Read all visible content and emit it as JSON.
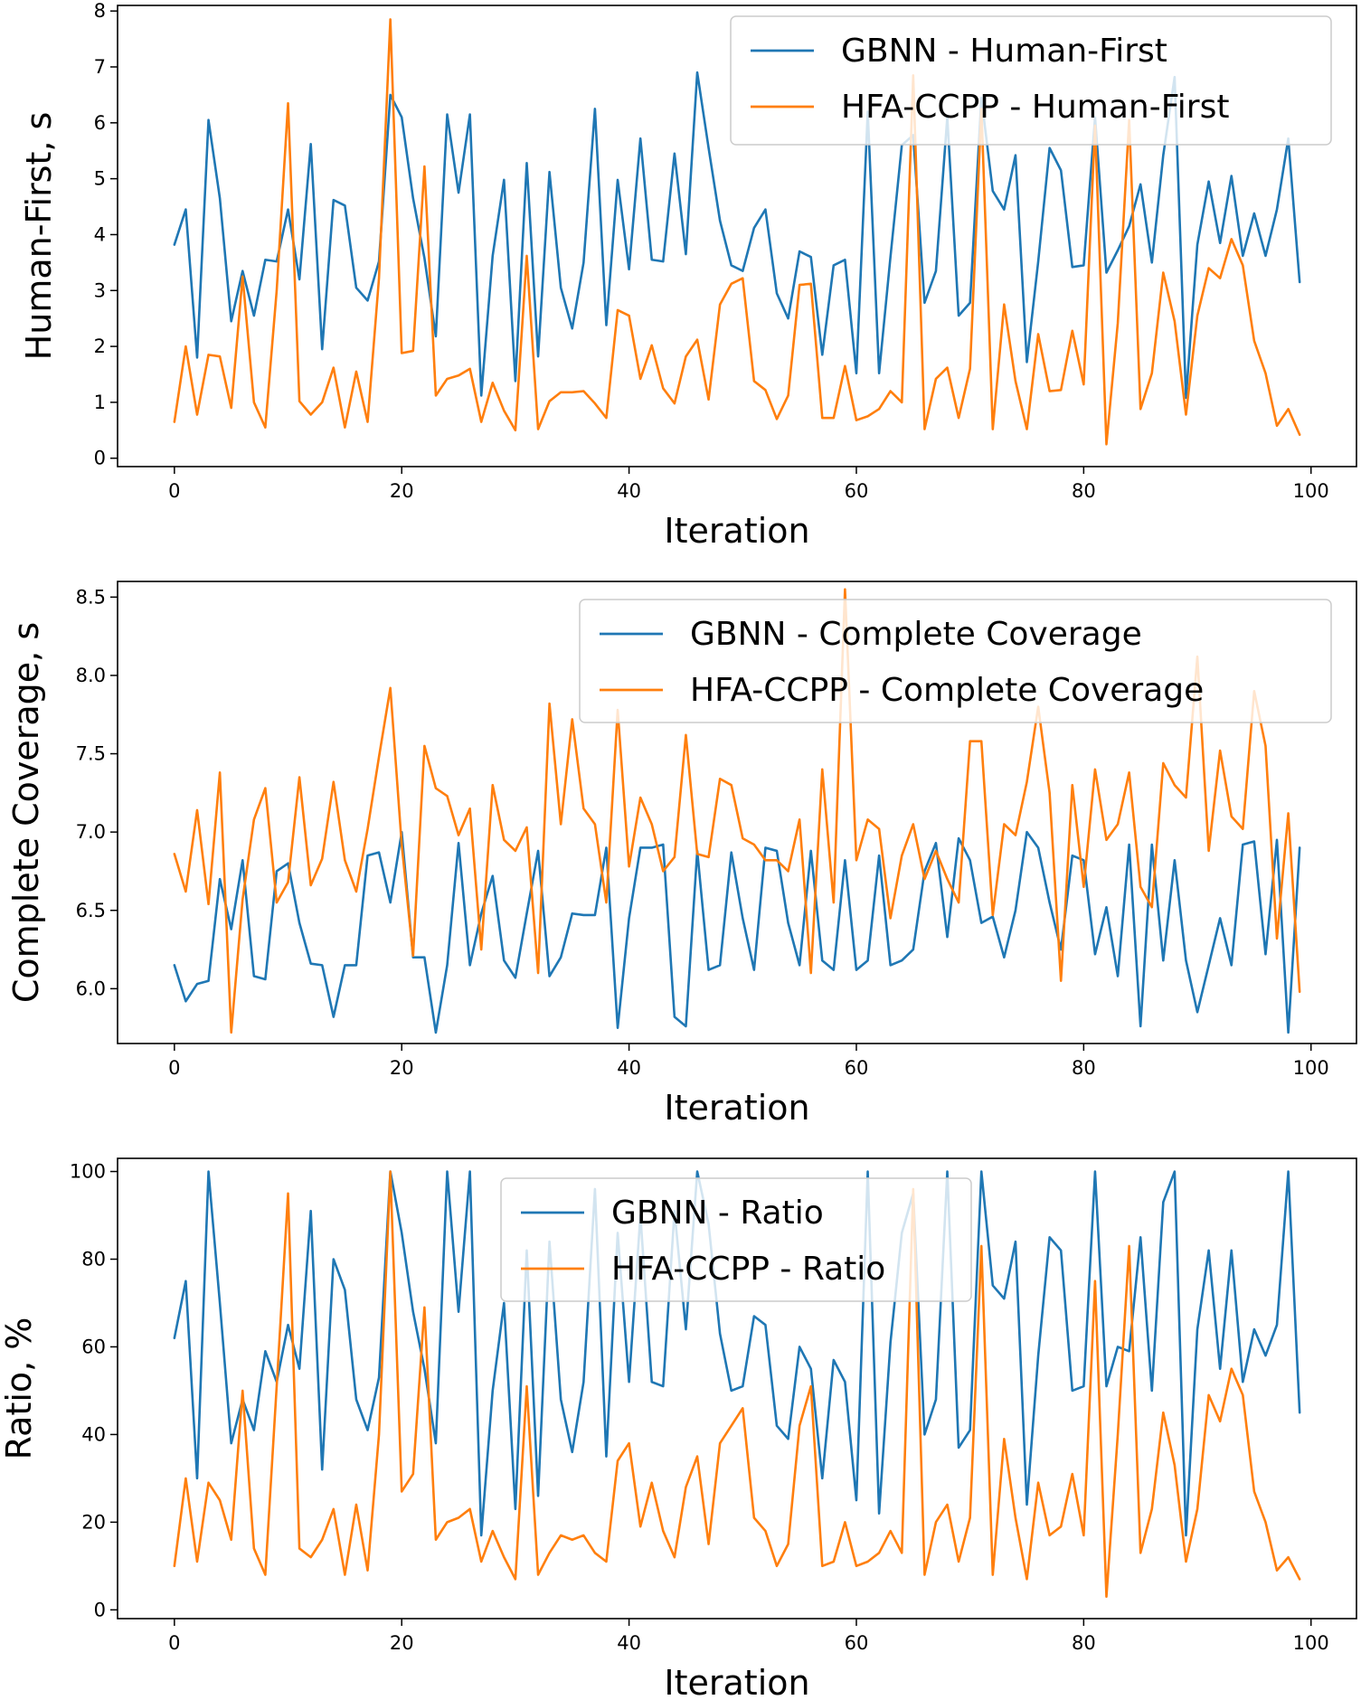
{
  "chart_data": [
    {
      "type": "line",
      "xlabel": "Iteration",
      "ylabel": "Human-First, s",
      "xlim": [
        -5,
        104
      ],
      "ylim": [
        -0.15,
        8.1
      ],
      "xticks": [
        0,
        20,
        40,
        60,
        80,
        100
      ],
      "yticks": [
        0,
        1,
        2,
        3,
        4,
        5,
        6,
        7,
        8
      ],
      "legend_position": "top-right",
      "series": [
        {
          "name": "GBNN - Human-First",
          "color": "#1f77b4",
          "values": [
            3.82,
            4.45,
            1.8,
            6.05,
            4.65,
            2.45,
            3.35,
            2.55,
            3.55,
            3.52,
            4.45,
            3.2,
            5.62,
            1.95,
            4.62,
            4.52,
            3.05,
            2.82,
            3.52,
            6.5,
            6.1,
            4.65,
            3.58,
            2.18,
            6.15,
            4.75,
            6.15,
            1.12,
            3.62,
            4.98,
            1.38,
            5.28,
            1.82,
            5.12,
            3.05,
            2.32,
            3.5,
            6.25,
            2.38,
            4.98,
            3.38,
            5.72,
            3.55,
            3.52,
            5.45,
            3.65,
            6.9,
            5.55,
            4.25,
            3.45,
            3.35,
            4.12,
            4.45,
            2.95,
            2.5,
            3.7,
            3.6,
            1.85,
            3.45,
            3.55,
            1.52,
            6.2,
            1.52,
            3.6,
            5.6,
            5.78,
            2.78,
            3.35,
            6.1,
            2.55,
            2.78,
            6.45,
            4.78,
            4.45,
            5.42,
            1.72,
            3.52,
            5.55,
            5.15,
            3.42,
            3.45,
            6.1,
            3.32,
            3.72,
            4.15,
            4.9,
            3.5,
            5.42,
            6.82,
            1.08,
            3.82,
            4.95,
            3.85,
            5.05,
            3.62,
            4.38,
            3.62,
            4.45,
            5.72,
            3.15
          ]
        },
        {
          "name": "HFA-CCPP - Human-First",
          "color": "#ff7f0e",
          "values": [
            0.65,
            2.0,
            0.78,
            1.85,
            1.82,
            0.9,
            3.25,
            1.0,
            0.55,
            3.0,
            6.35,
            1.02,
            0.78,
            1.0,
            1.62,
            0.55,
            1.55,
            0.65,
            3.22,
            7.85,
            1.88,
            1.92,
            5.22,
            1.12,
            1.42,
            1.48,
            1.6,
            0.65,
            1.35,
            0.85,
            0.5,
            3.62,
            0.52,
            1.02,
            1.18,
            1.18,
            1.2,
            0.98,
            0.72,
            2.65,
            2.55,
            1.42,
            2.02,
            1.25,
            0.98,
            1.82,
            2.12,
            1.05,
            2.75,
            3.12,
            3.22,
            1.38,
            1.22,
            0.7,
            1.12,
            3.1,
            3.12,
            0.72,
            0.72,
            1.65,
            0.68,
            0.75,
            0.88,
            1.2,
            1.0,
            6.85,
            0.52,
            1.42,
            1.62,
            0.72,
            1.6,
            6.25,
            0.52,
            2.75,
            1.38,
            0.52,
            2.22,
            1.2,
            1.22,
            2.28,
            1.32,
            5.95,
            0.25,
            2.42,
            6.05,
            0.88,
            1.52,
            3.32,
            2.45,
            0.78,
            2.55,
            3.4,
            3.22,
            3.92,
            3.45,
            2.1,
            1.52,
            0.58,
            0.88,
            0.42
          ]
        }
      ]
    },
    {
      "type": "line",
      "xlabel": "Iteration",
      "ylabel": "Complete Coverage, s",
      "xlim": [
        -5,
        104
      ],
      "ylim": [
        5.65,
        8.6
      ],
      "xticks": [
        0,
        20,
        40,
        60,
        80,
        100
      ],
      "yticks": [
        6.0,
        6.5,
        7.0,
        7.5,
        8.0,
        8.5
      ],
      "legend_position": "top-right",
      "series": [
        {
          "name": "GBNN - Complete Coverage",
          "color": "#1f77b4",
          "values": [
            6.15,
            5.92,
            6.03,
            6.05,
            6.7,
            6.38,
            6.82,
            6.08,
            6.06,
            6.75,
            6.8,
            6.42,
            6.16,
            6.15,
            5.82,
            6.15,
            6.15,
            6.85,
            6.87,
            6.55,
            7.0,
            6.2,
            6.2,
            5.72,
            6.15,
            6.93,
            6.15,
            6.48,
            6.72,
            6.18,
            6.07,
            6.48,
            6.88,
            6.08,
            6.2,
            6.48,
            6.47,
            6.47,
            6.9,
            5.75,
            6.45,
            6.9,
            6.9,
            6.92,
            5.82,
            5.76,
            6.88,
            6.12,
            6.15,
            6.87,
            6.45,
            6.12,
            6.9,
            6.88,
            6.42,
            6.15,
            6.88,
            6.18,
            6.12,
            6.82,
            6.12,
            6.18,
            6.85,
            6.15,
            6.18,
            6.25,
            6.75,
            6.93,
            6.33,
            6.96,
            6.82,
            6.42,
            6.46,
            6.2,
            6.5,
            7.0,
            6.9,
            6.55,
            6.25,
            6.85,
            6.82,
            6.22,
            6.52,
            6.08,
            6.92,
            5.76,
            6.92,
            6.18,
            6.82,
            6.18,
            5.85,
            6.15,
            6.45,
            6.15,
            6.92,
            6.94,
            6.22,
            6.95,
            5.72,
            6.9
          ]
        },
        {
          "name": "HFA-CCPP - Complete Coverage",
          "color": "#ff7f0e",
          "values": [
            6.86,
            6.62,
            7.14,
            6.54,
            7.38,
            5.72,
            6.57,
            7.08,
            7.28,
            6.55,
            6.68,
            7.35,
            6.66,
            6.83,
            7.32,
            6.82,
            6.62,
            7.02,
            7.48,
            7.92,
            6.92,
            6.21,
            7.55,
            7.28,
            7.23,
            6.98,
            7.15,
            6.25,
            7.3,
            6.95,
            6.88,
            7.03,
            6.1,
            7.82,
            7.05,
            7.72,
            7.15,
            7.05,
            6.55,
            7.78,
            6.78,
            7.22,
            7.05,
            6.75,
            6.84,
            7.62,
            6.86,
            6.84,
            7.34,
            7.3,
            6.96,
            6.92,
            6.82,
            6.82,
            6.75,
            7.08,
            6.1,
            7.4,
            6.55,
            8.55,
            6.82,
            7.08,
            7.02,
            6.45,
            6.85,
            7.05,
            6.7,
            6.88,
            6.7,
            6.55,
            7.58,
            7.58,
            6.47,
            7.05,
            6.98,
            7.32,
            7.8,
            7.25,
            6.05,
            7.3,
            6.65,
            7.4,
            6.95,
            7.05,
            7.38,
            6.65,
            6.52,
            7.44,
            7.3,
            7.22,
            8.12,
            6.88,
            7.52,
            7.1,
            7.02,
            7.9,
            7.55,
            6.32,
            7.12,
            5.98
          ]
        }
      ]
    },
    {
      "type": "line",
      "xlabel": "Iteration",
      "ylabel": "Ratio, %",
      "xlim": [
        -5,
        104
      ],
      "ylim": [
        -2,
        103
      ],
      "xticks": [
        0,
        20,
        40,
        60,
        80,
        100
      ],
      "yticks": [
        0,
        20,
        40,
        60,
        80,
        100
      ],
      "legend_position": "top-center",
      "series": [
        {
          "name": "GBNN - Ratio",
          "color": "#1f77b4",
          "values": [
            62,
            75,
            30,
            100,
            70,
            38,
            48,
            41,
            59,
            52,
            65,
            55,
            91,
            32,
            80,
            73,
            48,
            41,
            53,
            100,
            86,
            68,
            55,
            38,
            100,
            68,
            100,
            17,
            50,
            70,
            23,
            82,
            26,
            84,
            48,
            36,
            52,
            96,
            35,
            86,
            52,
            90,
            52,
            51,
            91,
            64,
            100,
            88,
            63,
            50,
            51,
            67,
            65,
            42,
            39,
            60,
            55,
            30,
            57,
            52,
            25,
            100,
            22,
            61,
            86,
            95,
            40,
            48,
            100,
            37,
            41,
            100,
            74,
            71,
            84,
            24,
            58,
            85,
            82,
            50,
            51,
            100,
            51,
            60,
            59,
            85,
            50,
            93,
            100,
            17,
            64,
            82,
            55,
            82,
            52,
            64,
            58,
            65,
            100,
            45
          ]
        },
        {
          "name": "HFA-CCPP - Ratio",
          "color": "#ff7f0e",
          "values": [
            10,
            30,
            11,
            29,
            25,
            16,
            50,
            14,
            8,
            51,
            95,
            14,
            12,
            16,
            23,
            8,
            24,
            9,
            40,
            100,
            27,
            31,
            69,
            16,
            20,
            21,
            23,
            11,
            18,
            12,
            7,
            51,
            8,
            13,
            17,
            16,
            17,
            13,
            11,
            34,
            38,
            19,
            29,
            18,
            12,
            28,
            35,
            15,
            38,
            42,
            46,
            21,
            18,
            10,
            15,
            42,
            51,
            10,
            11,
            20,
            10,
            11,
            13,
            18,
            13,
            96,
            8,
            20,
            24,
            11,
            21,
            83,
            8,
            39,
            21,
            7,
            29,
            17,
            19,
            31,
            17,
            75,
            3,
            40,
            83,
            13,
            23,
            45,
            33,
            11,
            23,
            49,
            43,
            55,
            49,
            27,
            20,
            9,
            12,
            7
          ]
        }
      ]
    }
  ]
}
